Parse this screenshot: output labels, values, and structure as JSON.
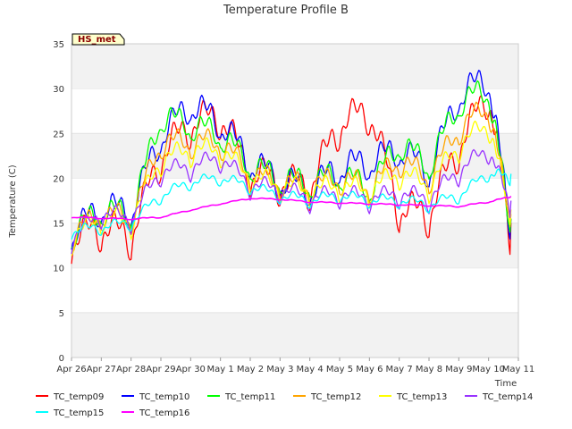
{
  "chart_data": {
    "type": "line",
    "title": "Temperature Profile B",
    "xlabel": "Time",
    "ylabel": "Temperature (C)",
    "annotation": "HS_met",
    "ylim": [
      0,
      35
    ],
    "yticks": [
      0,
      5,
      10,
      15,
      20,
      25,
      30,
      35
    ],
    "xlim": [
      "2024-04-26",
      "2024-05-11"
    ],
    "xtick_labels": [
      "Apr 26",
      "Apr 27",
      "Apr 28",
      "Apr 29",
      "Apr 30",
      "May 1",
      "May 2",
      "May 3",
      "May 4",
      "May 5",
      "May 6",
      "May 7",
      "May 8",
      "May 9",
      "May 10",
      "May 11"
    ],
    "grid": "horizontal bands",
    "legend": "bottom",
    "x": [
      "2024-04-26",
      "2024-04-27",
      "2024-04-28",
      "2024-04-29",
      "2024-04-30",
      "2024-05-01",
      "2024-05-02",
      "2024-05-03",
      "2024-05-04",
      "2024-05-05",
      "2024-05-06",
      "2024-05-07",
      "2024-05-08",
      "2024-05-09",
      "2024-05-10",
      "2024-05-10 18:00"
    ],
    "series": [
      {
        "name": "TC_temp09",
        "color": "#ff0000",
        "values": [
          14.5,
          16.0,
          15.0,
          24.0,
          27.5,
          28.5,
          22.0,
          21.0,
          20.5,
          27.5,
          29.0,
          18.0,
          17.5,
          25.0,
          31.0,
          15.0
        ]
      },
      {
        "name": "TC_temp10",
        "color": "#0000ff",
        "values": [
          15.0,
          18.0,
          17.5,
          26.0,
          29.5,
          27.5,
          23.0,
          21.0,
          20.0,
          22.5,
          23.0,
          24.5,
          22.0,
          30.5,
          32.5,
          15.5
        ]
      },
      {
        "name": "TC_temp11",
        "color": "#00ff00",
        "values": [
          14.8,
          17.5,
          17.0,
          28.0,
          27.0,
          26.0,
          22.5,
          21.0,
          20.5,
          21.5,
          20.0,
          25.0,
          22.5,
          29.5,
          31.0,
          15.5
        ]
      },
      {
        "name": "TC_temp12",
        "color": "#ffa500",
        "values": [
          14.5,
          17.0,
          16.5,
          25.0,
          25.0,
          25.0,
          21.5,
          20.5,
          20.0,
          21.0,
          20.0,
          23.0,
          21.0,
          26.5,
          29.0,
          16.0
        ]
      },
      {
        "name": "TC_temp13",
        "color": "#ffff00",
        "values": [
          14.2,
          16.5,
          16.0,
          23.0,
          24.0,
          24.0,
          21.0,
          20.0,
          19.5,
          20.0,
          19.5,
          21.5,
          20.0,
          24.5,
          27.0,
          16.5
        ]
      },
      {
        "name": "TC_temp14",
        "color": "#9933ff",
        "values": [
          14.0,
          16.8,
          16.2,
          21.5,
          22.0,
          23.0,
          20.0,
          19.5,
          18.5,
          19.0,
          18.5,
          19.0,
          18.5,
          21.5,
          24.0,
          17.5
        ]
      },
      {
        "name": "TC_temp15",
        "color": "#00ffff",
        "values": [
          14.5,
          15.0,
          15.5,
          18.5,
          20.0,
          20.5,
          19.5,
          18.5,
          18.0,
          18.5,
          18.0,
          18.0,
          17.5,
          18.5,
          21.0,
          20.5
        ]
      },
      {
        "name": "TC_temp16",
        "color": "#ff00ff",
        "values": [
          15.7,
          15.6,
          15.5,
          15.7,
          16.5,
          17.2,
          17.8,
          17.7,
          17.4,
          17.3,
          17.2,
          17.1,
          17.0,
          16.9,
          17.4,
          18.0
        ]
      }
    ]
  }
}
